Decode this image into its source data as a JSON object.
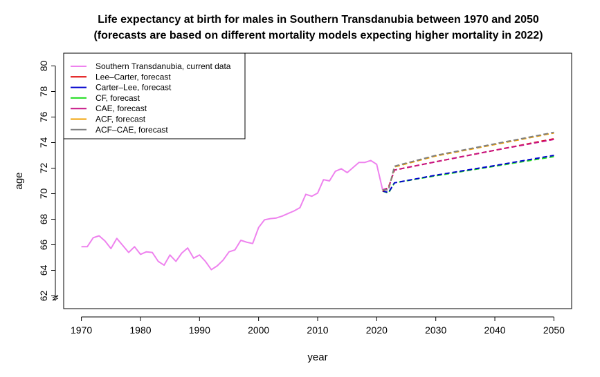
{
  "chart_data": {
    "type": "line",
    "title_line1": "Life expectancy at birth for males in Southern Transdanubia between 1970 and 2050",
    "title_line2": "(forecasts are based on different mortality models expecting higher mortality in 2022)",
    "xlabel": "year",
    "ylabel": "age",
    "xlim": [
      1967,
      2053
    ],
    "ylim": [
      61,
      81
    ],
    "xticks": [
      1970,
      1980,
      1990,
      2000,
      2010,
      2020,
      2030,
      2040,
      2050
    ],
    "yticks": [
      62,
      64,
      66,
      68,
      70,
      72,
      74,
      76,
      78,
      80
    ],
    "axis_break": true,
    "legend_position": "top-left",
    "series": [
      {
        "name": "Southern Transdanubia, current data",
        "color": "#EE82EE",
        "style": "solid",
        "x": [
          1970,
          1971,
          1972,
          1973,
          1974,
          1975,
          1976,
          1977,
          1978,
          1979,
          1980,
          1981,
          1982,
          1983,
          1984,
          1985,
          1986,
          1987,
          1988,
          1989,
          1990,
          1991,
          1992,
          1993,
          1994,
          1995,
          1996,
          1997,
          1998,
          1999,
          2000,
          2001,
          2002,
          2003,
          2004,
          2005,
          2006,
          2007,
          2008,
          2009,
          2010,
          2011,
          2012,
          2013,
          2014,
          2015,
          2016,
          2017,
          2018,
          2019,
          2020,
          2021
        ],
        "y": [
          65.85,
          65.85,
          66.55,
          66.7,
          66.3,
          65.7,
          66.5,
          65.95,
          65.4,
          65.85,
          65.25,
          65.45,
          65.4,
          64.7,
          64.4,
          65.2,
          64.7,
          65.35,
          65.75,
          64.95,
          65.2,
          64.7,
          64.05,
          64.35,
          64.8,
          65.45,
          65.6,
          66.35,
          66.2,
          66.1,
          67.35,
          67.95,
          68.05,
          68.1,
          68.25,
          68.45,
          68.65,
          68.9,
          69.95,
          69.8,
          70.05,
          71.1,
          71.0,
          71.75,
          71.95,
          71.65,
          72.05,
          72.45,
          72.45,
          72.6,
          72.3,
          70.3
        ]
      },
      {
        "name": "Lee–Carter, forecast",
        "color": "#DF0000",
        "style": "dashed",
        "x": [
          2021,
          2022,
          2023,
          2030,
          2040,
          2050
        ],
        "y": [
          70.2,
          70.5,
          71.85,
          72.5,
          73.4,
          74.3
        ]
      },
      {
        "name": "Carter–Lee, forecast",
        "color": "#0000CD",
        "style": "dashed",
        "x": [
          2021,
          2022,
          2023,
          2030,
          2040,
          2050
        ],
        "y": [
          70.2,
          70.1,
          70.85,
          71.45,
          72.2,
          73.0
        ]
      },
      {
        "name": "CF, forecast",
        "color": "#1FDC1F",
        "style": "dashed",
        "x": [
          2021,
          2022,
          2023,
          2030,
          2040,
          2050
        ],
        "y": [
          70.2,
          70.05,
          70.85,
          71.4,
          72.15,
          72.9
        ]
      },
      {
        "name": "CAE, forecast",
        "color": "#C71585",
        "style": "dashed",
        "x": [
          2021,
          2022,
          2023,
          2030,
          2040,
          2050
        ],
        "y": [
          70.3,
          70.45,
          71.85,
          72.5,
          73.4,
          74.25
        ]
      },
      {
        "name": "ACF, forecast",
        "color": "#F0A000",
        "style": "dashed",
        "x": [
          2021,
          2022,
          2023,
          2030,
          2040,
          2050
        ],
        "y": [
          70.3,
          70.3,
          72.1,
          72.95,
          73.85,
          74.75
        ]
      },
      {
        "name": "ACF–CAE, forecast",
        "color": "#808080",
        "style": "dashed",
        "x": [
          2021,
          2022,
          2023,
          2030,
          2040,
          2050
        ],
        "y": [
          70.3,
          70.3,
          72.15,
          73.0,
          73.9,
          74.8
        ]
      }
    ]
  }
}
